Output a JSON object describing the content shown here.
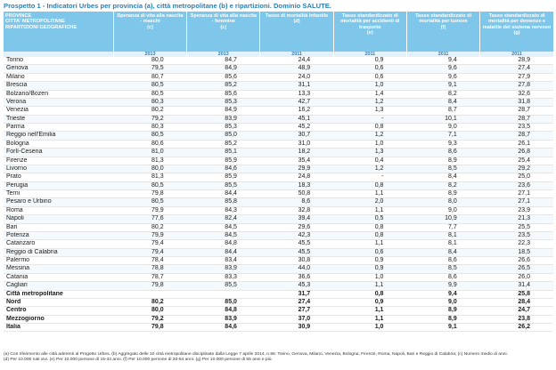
{
  "title": "Prospetto 1 - Indicatori Urbes per provincia (a), città metropolitane (b) e ripartizioni. Dominio SALUTE.",
  "header": {
    "col0": [
      "PROVINCE",
      "CITTA' METROPOLITANE",
      "RIPARTIZIONI GEOGRAFICHE"
    ],
    "cols": [
      {
        "label": "Speranza di vita alla nascita - maschi",
        "note": "(c)",
        "year": "2013"
      },
      {
        "label": "Speranza di vita alla nascita - femmine",
        "note": "(c)",
        "year": "2013"
      },
      {
        "label": "Tasso di mortalità infantile",
        "note": "(d)",
        "year": "2011"
      },
      {
        "label": "Tasso standardizzato di mortalità per accidenti di trasporto",
        "note": "(e)",
        "year": "2011"
      },
      {
        "label": "Tasso standardizzato di mortalità per tumore",
        "note": "(f)",
        "year": "2011"
      },
      {
        "label": "Tasso standardizzato di mortalità per demenze e malattie del sistema nervoso",
        "note": "(g)",
        "year": "2011"
      }
    ]
  },
  "rows": [
    {
      "name": "Torino",
      "v": [
        "80,0",
        "84,7",
        "24,4",
        "0,9",
        "9,4",
        "28,9"
      ]
    },
    {
      "name": "Genova",
      "v": [
        "79,5",
        "84,9",
        "48,9",
        "0,6",
        "9,6",
        "27,4"
      ]
    },
    {
      "name": "Milano",
      "v": [
        "80,7",
        "85,6",
        "24,0",
        "0,6",
        "9,6",
        "27,9"
      ]
    },
    {
      "name": "Brescia",
      "v": [
        "80,5",
        "85,2",
        "31,1",
        "1,0",
        "9,1",
        "27,8"
      ]
    },
    {
      "name": "Bolzano/Bozen",
      "v": [
        "80,5",
        "85,6",
        "13,3",
        "1,4",
        "8,2",
        "32,6"
      ]
    },
    {
      "name": "Verona",
      "v": [
        "80,3",
        "85,3",
        "42,7",
        "1,2",
        "8,4",
        "31,8"
      ]
    },
    {
      "name": "Venezia",
      "v": [
        "80,2",
        "84,9",
        "16,2",
        "1,3",
        "8,7",
        "28,7"
      ]
    },
    {
      "name": "Trieste",
      "v": [
        "79,2",
        "83,9",
        "45,1",
        "-",
        "10,1",
        "28,7"
      ]
    },
    {
      "name": "Parma",
      "v": [
        "80,3",
        "85,3",
        "45,2",
        "0,8",
        "9,0",
        "23,5"
      ]
    },
    {
      "name": "Reggio nell'Emilia",
      "v": [
        "80,5",
        "85,0",
        "30,7",
        "1,2",
        "7,1",
        "28,7"
      ]
    },
    {
      "name": "Bologna",
      "v": [
        "80,6",
        "85,2",
        "31,0",
        "1,0",
        "9,3",
        "26,1"
      ]
    },
    {
      "name": "Forlì-Cesena",
      "v": [
        "81,0",
        "85,1",
        "18,2",
        "1,3",
        "8,6",
        "26,8"
      ]
    },
    {
      "name": "Firenze",
      "v": [
        "81,3",
        "85,9",
        "35,4",
        "0,4",
        "8,9",
        "25,4"
      ]
    },
    {
      "name": "Livorno",
      "v": [
        "80,0",
        "84,6",
        "29,9",
        "1,2",
        "8,5",
        "29,2"
      ]
    },
    {
      "name": "Prato",
      "v": [
        "81,3",
        "85,9",
        "24,8",
        "-",
        "8,4",
        "25,0"
      ]
    },
    {
      "name": "Perugia",
      "v": [
        "80,5",
        "85,5",
        "18,3",
        "0,8",
        "8,2",
        "23,6"
      ]
    },
    {
      "name": "Terni",
      "v": [
        "79,8",
        "84,4",
        "50,8",
        "1,1",
        "8,9",
        "27,1"
      ]
    },
    {
      "name": "Pesaro e Urbino",
      "v": [
        "80,5",
        "85,8",
        "8,6",
        "2,0",
        "8,0",
        "27,1"
      ]
    },
    {
      "name": "Roma",
      "v": [
        "79,9",
        "84,3",
        "32,8",
        "1,1",
        "9,0",
        "23,9"
      ]
    },
    {
      "name": "Napoli",
      "v": [
        "77,6",
        "82,4",
        "39,4",
        "0,5",
        "10,9",
        "21,3"
      ]
    },
    {
      "name": "Bari",
      "v": [
        "80,2",
        "84,5",
        "29,6",
        "0,8",
        "7,7",
        "25,5"
      ]
    },
    {
      "name": "Potenza",
      "v": [
        "79,9",
        "84,5",
        "42,3",
        "0,8",
        "8,1",
        "23,5"
      ]
    },
    {
      "name": "Catanzaro",
      "v": [
        "79,4",
        "84,8",
        "45,5",
        "1,1",
        "8,1",
        "22,3"
      ]
    },
    {
      "name": "Reggio di Calabria",
      "v": [
        "79,4",
        "84,4",
        "45,5",
        "0,6",
        "8,4",
        "18,5"
      ]
    },
    {
      "name": "Palermo",
      "v": [
        "78,4",
        "83,4",
        "30,8",
        "0,9",
        "8,6",
        "26,6"
      ]
    },
    {
      "name": "Messina",
      "v": [
        "78,8",
        "83,9",
        "44,0",
        "0,9",
        "8,5",
        "26,5"
      ]
    },
    {
      "name": "Catania",
      "v": [
        "78,7",
        "83,3",
        "36,6",
        "1,0",
        "8,6",
        "26,0"
      ]
    },
    {
      "name": "Cagliari",
      "v": [
        "79,8",
        "85,5",
        "45,3",
        "1,1",
        "9,9",
        "31,4"
      ]
    }
  ],
  "aggregates": [
    {
      "name": "Città metropolitane",
      "v": [
        "",
        "",
        "31,7",
        "0,8",
        "9,4",
        "25,8"
      ]
    },
    {
      "name": "Nord",
      "v": [
        "80,2",
        "85,0",
        "27,4",
        "0,9",
        "9,0",
        "28,4"
      ]
    },
    {
      "name": "Centro",
      "v": [
        "80,0",
        "84,8",
        "27,7",
        "1,1",
        "8,9",
        "24,7"
      ]
    },
    {
      "name": "Mezzogiorno",
      "v": [
        "79,2",
        "83,9",
        "37,0",
        "1,1",
        "8,9",
        "23,8"
      ]
    },
    {
      "name": "Italia",
      "v": [
        "79,8",
        "84,6",
        "30,9",
        "1,0",
        "9,1",
        "26,2"
      ]
    }
  ],
  "notes": [
    "(a) Con riferimento alle città aderenti al Progetto Urbes.   (b) Aggregato delle 10 città metropolitane  disciplinate dalla Legge 7 aprile 2014, n.56: Torino, Genova, Milano, Venezia, Bologna, Firenze,  Roma, Napoli, Bari e Reggio di Calabria;   (c) Numero medio di anni.",
    "(d) Per 10.000 nati vivi.   (e) Per 10.000 persone di 15-34 anni.   (f) Per 10.000 persone di 20-64 anni.   (g) Per 10.000 persone di 65 anni e più."
  ]
}
